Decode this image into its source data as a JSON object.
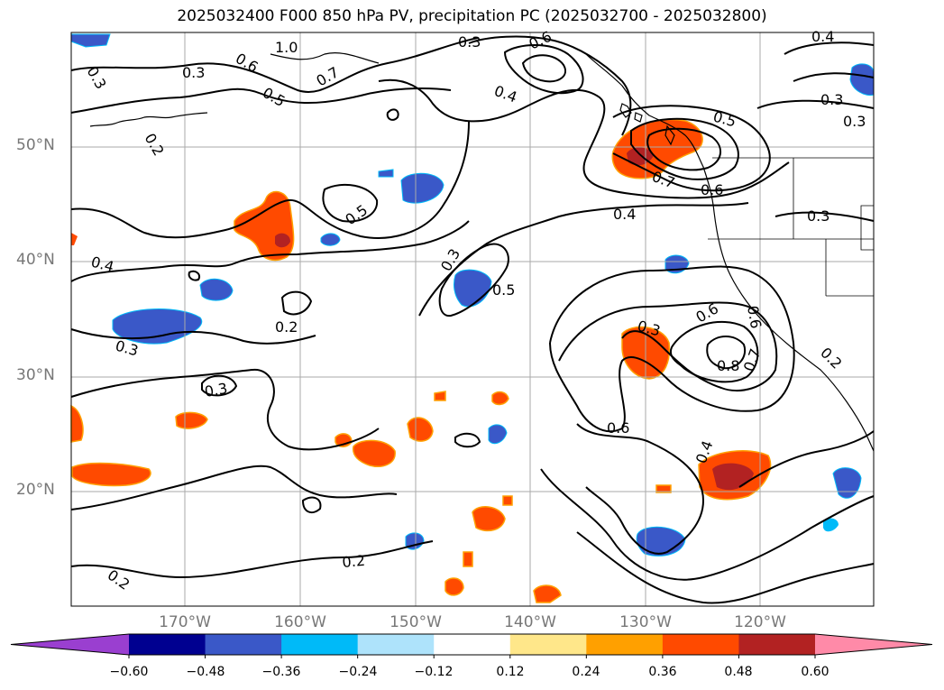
{
  "title": "2025032400 F000 850 hPa PV, precipitation PC (2025032700 - 2025032800)",
  "lat_labels": [
    "50°N",
    "40°N",
    "30°N",
    "20°N"
  ],
  "lon_labels": [
    "170°W",
    "160°W",
    "150°W",
    "140°W",
    "130°W",
    "120°W"
  ],
  "colorbar": {
    "ticks": [
      "−0.60",
      "−0.48",
      "−0.36",
      "−0.24",
      "−0.12",
      "0.12",
      "0.24",
      "0.36",
      "0.48",
      "0.60"
    ],
    "colors": [
      "#9a3fd0",
      "#000090",
      "#3a58c8",
      "#00baf8",
      "#aee3fb",
      "#ffffff",
      "#ffe78a",
      "#ffa000",
      "#ff4a00",
      "#b22222",
      "#ff8aa8"
    ]
  },
  "contour_labels": [
    "0.3",
    "1.0",
    "0.3",
    "0.6",
    "0.4",
    "0.3",
    "0.6",
    "0.4",
    "0.5",
    "0.7",
    "0.2",
    "0.5",
    "0.3",
    "0.5",
    "0.7",
    "0.6",
    "0.4",
    "0.3",
    "0.4",
    "0.2",
    "0.3",
    "0.5",
    "0.3",
    "0.3",
    "0.6",
    "0.8",
    "0.7",
    "0.6",
    "0.2",
    "0.3",
    "0.6",
    "0.4",
    "0.2",
    "0.2",
    "0.3"
  ]
}
